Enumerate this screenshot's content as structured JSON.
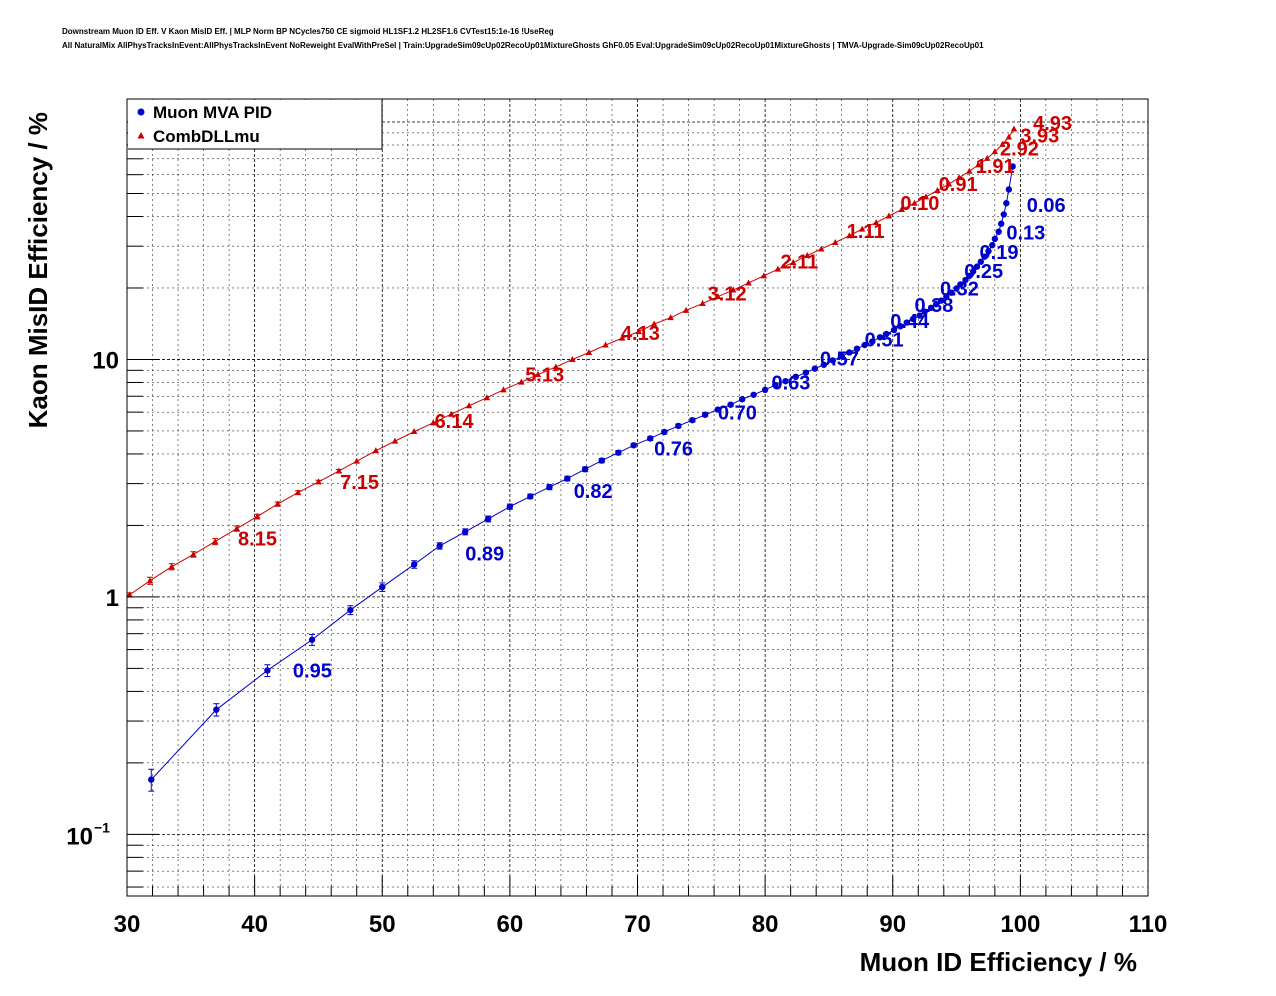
{
  "chart_data": {
    "type": "scatter",
    "title_lines": [
      "Downstream Muon ID Eff. V Kaon MisID Eff. | MLP Norm BP NCycles750 CE sigmoid HL1SF1.2 HL2SF1.6 CVTest15:1e-16 !UseReg",
      "All NaturalMix AllPhysTracksInEvent:AllPhysTracksInEvent NoReweight EvalWithPreSel | Train:UpgradeSim09cUp02RecoUp01MixtureGhosts GhF0.05 Eval:UpgradeSim09cUp02RecoUp01MixtureGhosts | TMVA-Upgrade-Sim09cUp02RecoUp01"
    ],
    "xlabel": "Muon ID Efficiency / %",
    "ylabel": "Kaon MisID Efficiency / %",
    "xlim": [
      30,
      110
    ],
    "ylim": [
      0.055,
      125
    ],
    "yscale": "log",
    "grid": true,
    "legend_position": "top-left",
    "x_ticks": [
      "30",
      "40",
      "50",
      "60",
      "70",
      "80",
      "90",
      "100",
      "110"
    ],
    "y_ticks": [
      {
        "value": 0.1,
        "base": "10",
        "exp": "−1"
      },
      {
        "value": 1,
        "label": "1"
      },
      {
        "value": 10,
        "label": "10"
      }
    ],
    "series": [
      {
        "name": "Muon MVA PID",
        "color": "#0000cc",
        "marker": "circle",
        "points": [
          [
            31.9,
            0.17,
            0.018
          ],
          [
            37.0,
            0.335,
            0.02
          ],
          [
            41.0,
            0.49,
            0.028
          ],
          [
            44.5,
            0.66,
            0.035
          ],
          [
            47.5,
            0.88,
            0.038
          ],
          [
            50.0,
            1.1,
            0.045
          ],
          [
            52.5,
            1.37,
            0.05
          ],
          [
            54.5,
            1.64,
            0.05
          ],
          [
            56.5,
            1.88,
            0.055
          ],
          [
            58.3,
            2.13,
            0.06
          ],
          [
            60.0,
            2.4,
            0.06
          ],
          [
            61.6,
            2.65,
            0.06
          ],
          [
            63.1,
            2.9,
            0.07
          ],
          [
            64.5,
            3.15,
            0.07
          ],
          [
            65.9,
            3.45,
            0.08
          ],
          [
            67.2,
            3.75,
            0.08
          ],
          [
            68.5,
            4.05,
            0.08
          ],
          [
            69.7,
            4.35,
            0.08
          ],
          [
            71.0,
            4.65,
            0.09
          ],
          [
            72.1,
            4.95,
            0.09
          ],
          [
            73.2,
            5.25,
            0.09
          ],
          [
            74.3,
            5.55,
            0.1
          ],
          [
            75.3,
            5.85,
            0.1
          ],
          [
            76.3,
            6.15,
            0.1
          ],
          [
            77.3,
            6.45,
            0.1
          ],
          [
            78.2,
            6.8,
            0.1
          ],
          [
            79.1,
            7.1,
            0.1
          ],
          [
            80.0,
            7.45,
            0.1
          ],
          [
            80.8,
            7.8,
            0.1
          ],
          [
            81.6,
            8.1,
            0.1
          ],
          [
            82.4,
            8.45,
            0.1
          ],
          [
            83.2,
            8.8,
            0.1
          ],
          [
            83.9,
            9.15,
            0.1
          ],
          [
            84.6,
            9.5,
            0.1
          ],
          [
            85.3,
            9.9,
            0.1
          ],
          [
            86.0,
            10.3,
            0.1
          ],
          [
            86.6,
            10.7,
            0.1
          ],
          [
            87.2,
            11.1,
            0.1
          ],
          [
            87.8,
            11.5,
            0.1
          ],
          [
            88.4,
            11.9,
            0.1
          ],
          [
            89.0,
            12.4,
            0.1
          ],
          [
            89.5,
            12.8,
            0.1
          ],
          [
            90.1,
            13.3,
            0.1
          ],
          [
            90.6,
            13.8,
            0.1
          ],
          [
            91.1,
            14.3,
            0.1
          ],
          [
            91.6,
            14.8,
            0.1
          ],
          [
            92.1,
            15.3,
            0.1
          ],
          [
            92.5,
            15.9,
            0.1
          ],
          [
            93.0,
            16.5,
            0.1
          ],
          [
            93.4,
            17.1,
            0.1
          ],
          [
            93.8,
            17.7,
            0.1
          ],
          [
            94.2,
            18.4,
            0.1
          ],
          [
            94.6,
            19.1,
            0.1
          ],
          [
            95.0,
            19.9,
            0.1
          ],
          [
            95.3,
            20.7,
            0.1
          ],
          [
            95.7,
            21.6,
            0.1
          ],
          [
            96.0,
            22.5,
            0.1
          ],
          [
            96.3,
            23.5,
            0.1
          ],
          [
            96.6,
            24.6,
            0.1
          ],
          [
            96.9,
            25.8,
            0.1
          ],
          [
            97.2,
            27.1,
            0.1
          ],
          [
            97.5,
            28.6,
            0.1
          ],
          [
            97.8,
            30.3,
            0.1
          ],
          [
            98.0,
            32.2,
            0.1
          ],
          [
            98.3,
            34.5,
            0.1
          ],
          [
            98.5,
            37.3,
            0.1
          ],
          [
            98.7,
            40.8,
            0.1
          ],
          [
            98.9,
            45.5,
            0.1
          ],
          [
            99.1,
            52.0,
            0.1
          ],
          [
            99.4,
            65.0,
            0.1
          ]
        ],
        "annotations": [
          {
            "text": "0.95",
            "x": 43.0,
            "y": 0.5
          },
          {
            "text": "0.89",
            "x": 56.5,
            "y": 1.55
          },
          {
            "text": "0.82",
            "x": 65.0,
            "y": 2.85
          },
          {
            "text": "0.76",
            "x": 71.3,
            "y": 4.3
          },
          {
            "text": "0.70",
            "x": 76.3,
            "y": 6.1
          },
          {
            "text": "0.63",
            "x": 80.5,
            "y": 8.15
          },
          {
            "text": "0.57",
            "x": 84.3,
            "y": 10.3
          },
          {
            "text": "0.51",
            "x": 87.8,
            "y": 12.4
          },
          {
            "text": "0.44",
            "x": 89.8,
            "y": 14.8
          },
          {
            "text": "0.38",
            "x": 91.7,
            "y": 17.3
          },
          {
            "text": "0.32",
            "x": 93.7,
            "y": 20.3
          },
          {
            "text": "0.25",
            "x": 95.6,
            "y": 24.0
          },
          {
            "text": "0.19",
            "x": 96.8,
            "y": 28.9
          },
          {
            "text": "0.13",
            "x": 98.9,
            "y": 35.0
          },
          {
            "text": "0.06",
            "x": 100.5,
            "y": 45.5
          }
        ]
      },
      {
        "name": "CombDLLmu",
        "color": "#cc0000",
        "marker": "triangle",
        "points": [
          [
            30.2,
            1.02,
            0.02
          ],
          [
            31.8,
            1.17,
            0.04
          ],
          [
            33.5,
            1.34,
            0.04
          ],
          [
            35.2,
            1.51,
            0.04
          ],
          [
            36.9,
            1.71,
            0.05
          ],
          [
            38.6,
            1.94,
            0.05
          ],
          [
            40.2,
            2.18,
            0.05
          ],
          [
            41.8,
            2.46,
            0.05
          ],
          [
            43.4,
            2.75,
            0.05
          ],
          [
            45.0,
            3.05,
            0.05
          ],
          [
            46.6,
            3.39,
            0.05
          ],
          [
            48.0,
            3.73,
            0.05
          ],
          [
            49.5,
            4.13,
            0.05
          ],
          [
            51.0,
            4.53,
            0.05
          ],
          [
            52.5,
            4.97,
            0.05
          ],
          [
            54.0,
            5.41,
            0.05
          ],
          [
            55.4,
            5.88,
            0.05
          ],
          [
            56.8,
            6.38,
            0.05
          ],
          [
            58.2,
            6.9,
            0.05
          ],
          [
            59.5,
            7.45,
            0.05
          ],
          [
            60.9,
            8.03,
            0.05
          ],
          [
            62.2,
            8.64,
            0.05
          ],
          [
            63.6,
            9.3,
            0.05
          ],
          [
            64.9,
            10.0,
            0.05
          ],
          [
            66.2,
            10.7,
            0.05
          ],
          [
            67.5,
            11.5,
            0.05
          ],
          [
            68.8,
            12.3,
            0.05
          ],
          [
            70.1,
            13.1,
            0.05
          ],
          [
            71.3,
            14.1,
            0.05
          ],
          [
            72.6,
            15.0,
            0.05
          ],
          [
            73.8,
            16.1,
            0.05
          ],
          [
            75.1,
            17.2,
            0.05
          ],
          [
            76.3,
            18.4,
            0.05
          ],
          [
            77.5,
            19.6,
            0.05
          ],
          [
            78.7,
            21.0,
            0.05
          ],
          [
            79.9,
            22.5,
            0.05
          ],
          [
            81.0,
            24.0,
            0.05
          ],
          [
            82.2,
            25.6,
            0.05
          ],
          [
            83.3,
            27.4,
            0.05
          ],
          [
            84.4,
            29.2,
            0.05
          ],
          [
            85.5,
            31.1,
            0.05
          ],
          [
            86.6,
            33.2,
            0.05
          ],
          [
            87.6,
            35.4,
            0.05
          ],
          [
            88.7,
            37.7,
            0.05
          ],
          [
            89.7,
            40.2,
            0.05
          ],
          [
            90.7,
            42.8,
            0.05
          ],
          [
            91.7,
            45.5,
            0.05
          ],
          [
            92.6,
            48.4,
            0.05
          ],
          [
            93.5,
            51.5,
            0.05
          ],
          [
            94.4,
            54.8,
            0.05
          ],
          [
            95.2,
            58.3,
            0.05
          ],
          [
            96.0,
            62.0,
            0.05
          ],
          [
            96.7,
            66.0,
            0.05
          ],
          [
            97.4,
            70.3,
            0.05
          ],
          [
            98.0,
            75.0,
            0.05
          ],
          [
            98.6,
            80.5,
            0.05
          ],
          [
            99.1,
            86.5,
            0.05
          ],
          [
            99.5,
            93.5,
            0.05
          ]
        ],
        "annotations": [
          {
            "text": "8.15",
            "x": 38.7,
            "y": 1.8
          },
          {
            "text": "7.15",
            "x": 46.7,
            "y": 3.1
          },
          {
            "text": "6.14",
            "x": 54.1,
            "y": 5.6
          },
          {
            "text": "5.13",
            "x": 61.2,
            "y": 8.8
          },
          {
            "text": "4.13",
            "x": 68.7,
            "y": 13.2
          },
          {
            "text": "3.12",
            "x": 75.5,
            "y": 19.3
          },
          {
            "text": "2.11",
            "x": 81.2,
            "y": 26.3
          },
          {
            "text": "1.11",
            "x": 86.4,
            "y": 35.5
          },
          {
            "text": "0.10",
            "x": 90.6,
            "y": 46.5
          },
          {
            "text": "0.91",
            "x": 93.6,
            "y": 56.0
          },
          {
            "text": "1.91",
            "x": 96.5,
            "y": 66.5
          },
          {
            "text": "2.92",
            "x": 98.4,
            "y": 79.0
          },
          {
            "text": "3.93",
            "x": 100.0,
            "y": 89.5
          },
          {
            "text": "4.93",
            "x": 101.0,
            "y": 101.0
          }
        ]
      }
    ]
  }
}
